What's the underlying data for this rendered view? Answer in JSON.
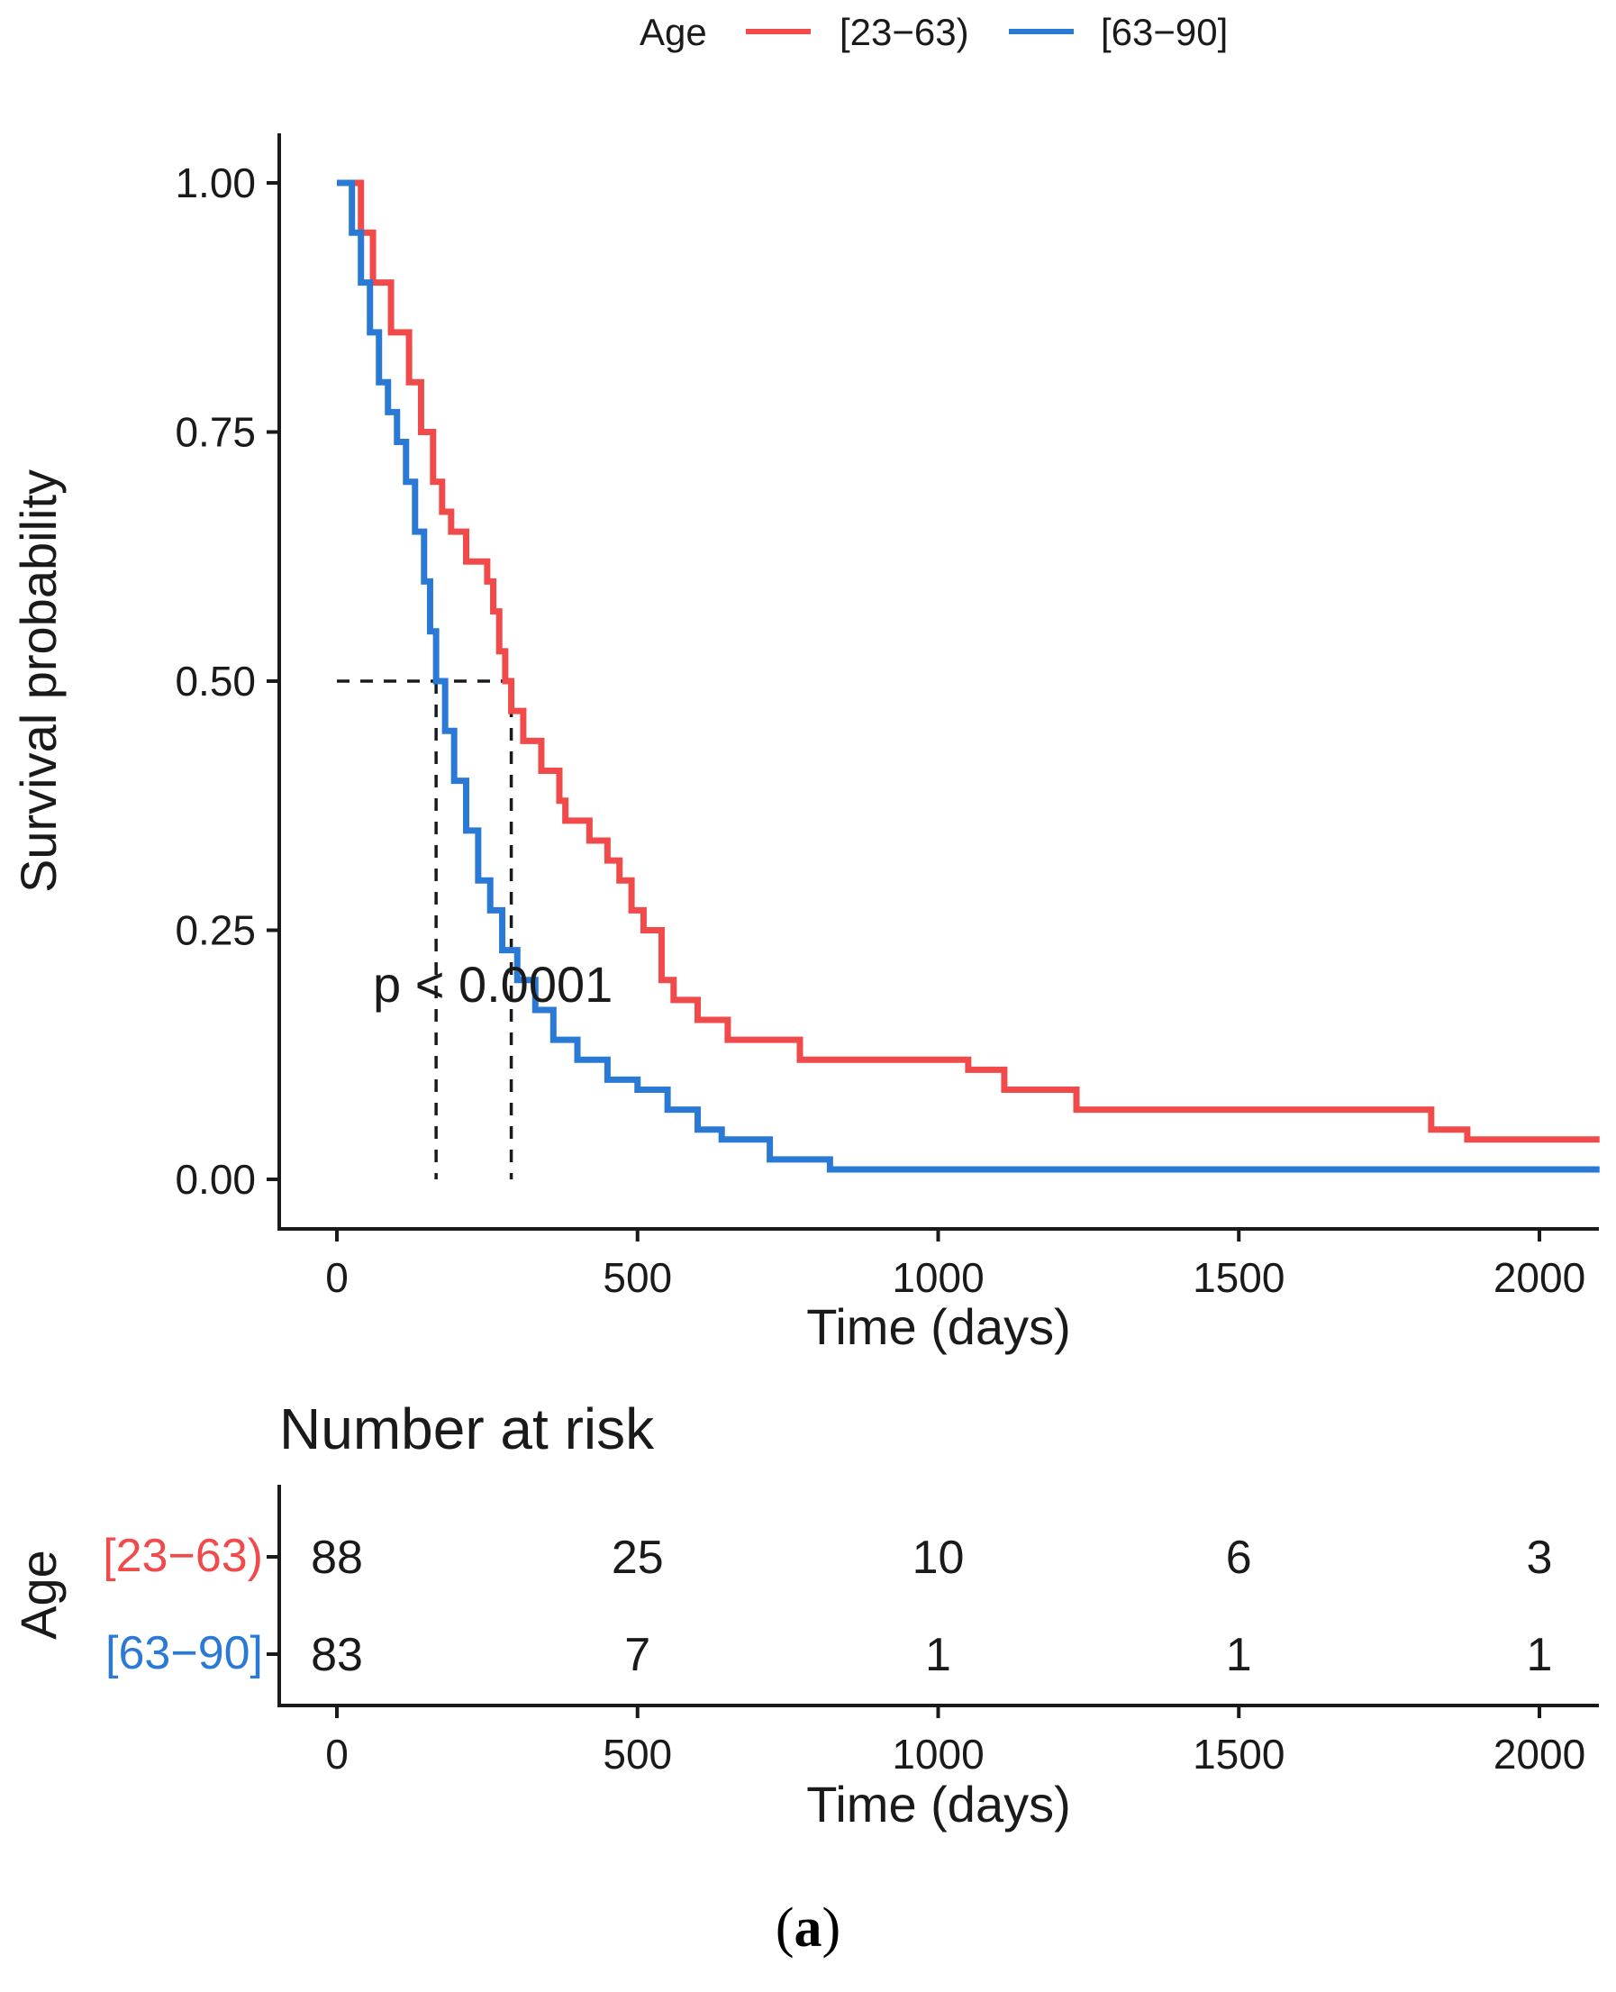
{
  "chart_data": [
    {
      "type": "line",
      "step": true,
      "xlabel": "Time (days)",
      "ylabel": "Survival probability",
      "xlim": [
        0,
        2100
      ],
      "ylim": [
        0,
        1
      ],
      "x_ticks": [
        "0",
        "500",
        "1000",
        "1500",
        "2000"
      ],
      "y_ticks": [
        "0.00",
        "0.25",
        "0.50",
        "0.75",
        "1.00"
      ],
      "legend": {
        "title": "Age",
        "placement": "top",
        "entries": [
          "[23−63)",
          "[63−90]"
        ]
      },
      "annotation": "p < 0.0001",
      "median_survival": [
        {
          "series": "[23−63)",
          "x": 290,
          "y": 0.5
        },
        {
          "series": "[63−90]",
          "x": 165,
          "y": 0.5
        }
      ],
      "series": [
        {
          "name": "[23−63)",
          "color": "#f14a4a",
          "x": [
            0,
            40,
            60,
            90,
            120,
            140,
            160,
            175,
            190,
            215,
            250,
            260,
            270,
            280,
            290,
            310,
            340,
            370,
            380,
            420,
            450,
            470,
            490,
            510,
            540,
            560,
            600,
            650,
            770,
            1050,
            1110,
            1230,
            1500,
            1820,
            1880,
            2100
          ],
          "y": [
            1.0,
            0.95,
            0.9,
            0.85,
            0.8,
            0.75,
            0.7,
            0.67,
            0.65,
            0.62,
            0.6,
            0.57,
            0.53,
            0.5,
            0.47,
            0.44,
            0.41,
            0.38,
            0.36,
            0.34,
            0.32,
            0.3,
            0.27,
            0.25,
            0.2,
            0.18,
            0.16,
            0.14,
            0.12,
            0.11,
            0.09,
            0.07,
            0.07,
            0.05,
            0.04,
            0.04
          ],
          "at_risk": [
            88,
            25,
            10,
            6,
            3
          ]
        },
        {
          "name": "[63−90]",
          "color": "#2a7ad5",
          "x": [
            0,
            25,
            40,
            55,
            70,
            85,
            100,
            115,
            130,
            145,
            155,
            165,
            180,
            195,
            215,
            235,
            255,
            275,
            300,
            330,
            360,
            400,
            450,
            500,
            550,
            600,
            640,
            720,
            820,
            2100
          ],
          "y": [
            1.0,
            0.95,
            0.9,
            0.85,
            0.8,
            0.77,
            0.74,
            0.7,
            0.65,
            0.6,
            0.55,
            0.5,
            0.45,
            0.4,
            0.35,
            0.3,
            0.27,
            0.23,
            0.2,
            0.17,
            0.14,
            0.12,
            0.1,
            0.09,
            0.07,
            0.05,
            0.04,
            0.02,
            0.01,
            0.01
          ],
          "at_risk": [
            83,
            7,
            1,
            1,
            1
          ]
        }
      ]
    },
    {
      "type": "table",
      "title": "Number at risk",
      "row_axis_label": "Age",
      "xlabel": "Time (days)",
      "x_ticks": [
        "0",
        "500",
        "1000",
        "1500",
        "2000"
      ],
      "rows": [
        {
          "label": "[23−63)",
          "color": "#f14a4a",
          "values": [
            "88",
            "25",
            "10",
            "6",
            "3"
          ]
        },
        {
          "label": "[63−90]",
          "color": "#2a7ad5",
          "values": [
            "83",
            "7",
            "1",
            "1",
            "1"
          ]
        }
      ]
    }
  ],
  "caption": {
    "open": "(",
    "letter": "a",
    "close": ")"
  }
}
